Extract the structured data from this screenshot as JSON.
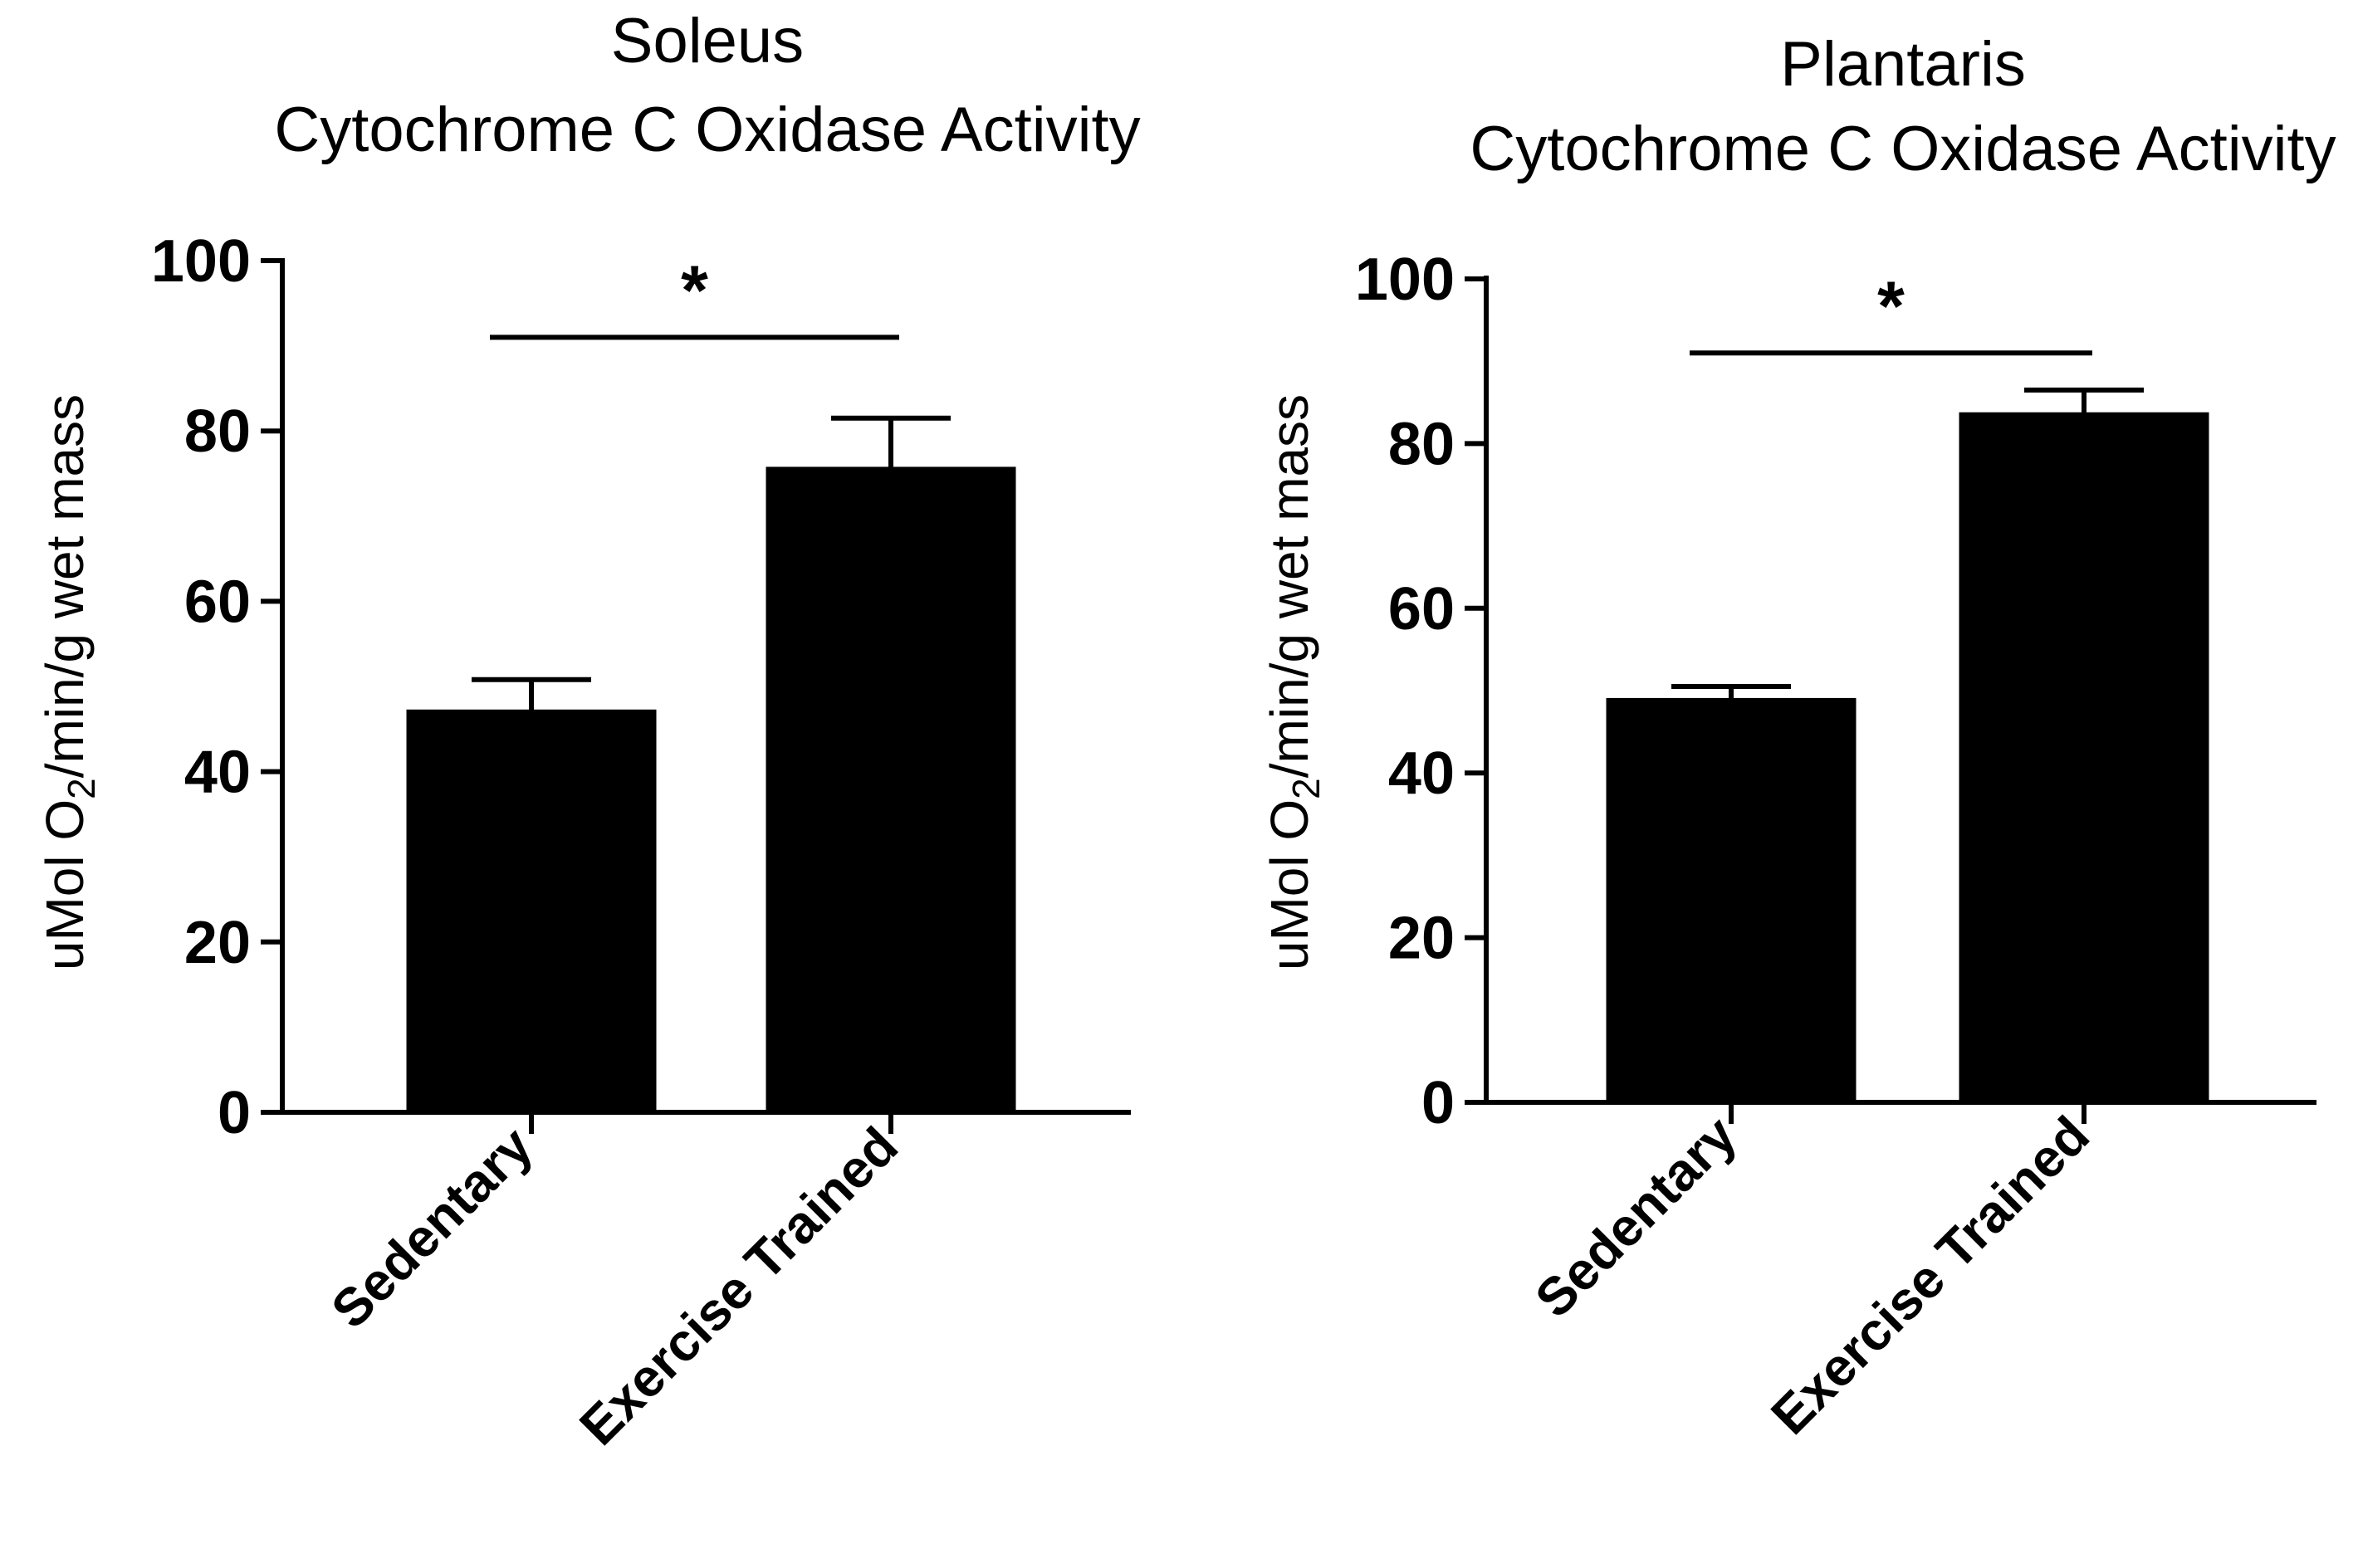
{
  "chart_data": [
    {
      "type": "bar",
      "title": "Soleus",
      "subtitle": "Cytochrome C Oxidase Activity",
      "ylabel_prefix": "uMol O",
      "ylabel_subscript": "2",
      "ylabel_suffix": "/min/g wet mass",
      "xlabel": "",
      "categories": [
        "Sedentary",
        "Exercise Trained"
      ],
      "values": [
        47,
        75.5
      ],
      "errors": [
        3.8,
        6
      ],
      "ylim": [
        0,
        100
      ],
      "yticks": [
        "0",
        "20",
        "40",
        "60",
        "80",
        "100"
      ],
      "bar_color": "#000000",
      "significance": {
        "label": "*",
        "between": [
          0,
          1
        ],
        "level": 91
      }
    },
    {
      "type": "bar",
      "title": "Plantaris",
      "subtitle": "Cytochrome C Oxidase Activity",
      "ylabel_prefix": "uMol O",
      "ylabel_subscript": "2",
      "ylabel_suffix": "/min/g wet mass",
      "xlabel": "",
      "categories": [
        "Sedentary",
        "Exercise Trained"
      ],
      "values": [
        48.8,
        83.5
      ],
      "errors": [
        1.7,
        3
      ],
      "ylim": [
        0,
        100
      ],
      "yticks": [
        "0",
        "20",
        "40",
        "60",
        "80",
        "100"
      ],
      "bar_color": "#000000",
      "significance": {
        "label": "*",
        "between": [
          0,
          1
        ],
        "level": 91
      }
    }
  ]
}
